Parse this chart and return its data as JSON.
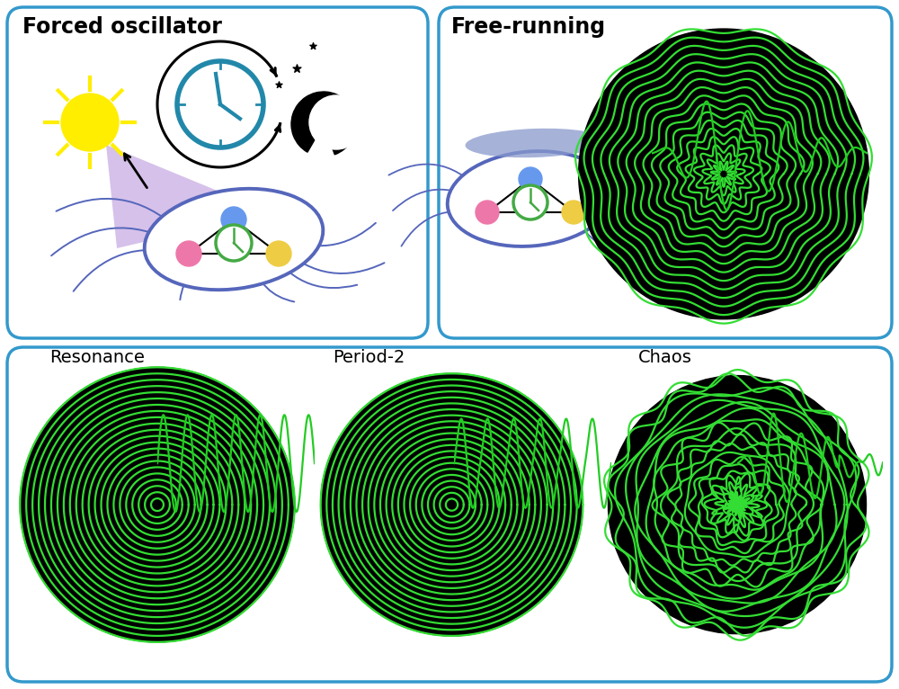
{
  "bg_color": "#ffffff",
  "border_color": "#3399cc",
  "title_forced": "Forced oscillator",
  "title_free": "Free-running",
  "label_resonance": "Resonance",
  "label_period2": "Period-2",
  "label_chaos": "Chaos",
  "green_color": "#22cc22",
  "green_color2": "#33dd33",
  "black_color": "#000000",
  "title_fontsize": 17,
  "label_fontsize": 14,
  "sun_color": "#ffee00",
  "clock_color": "#2288aa",
  "cell_color": "#5566bb",
  "purple_color": "#7755bb"
}
